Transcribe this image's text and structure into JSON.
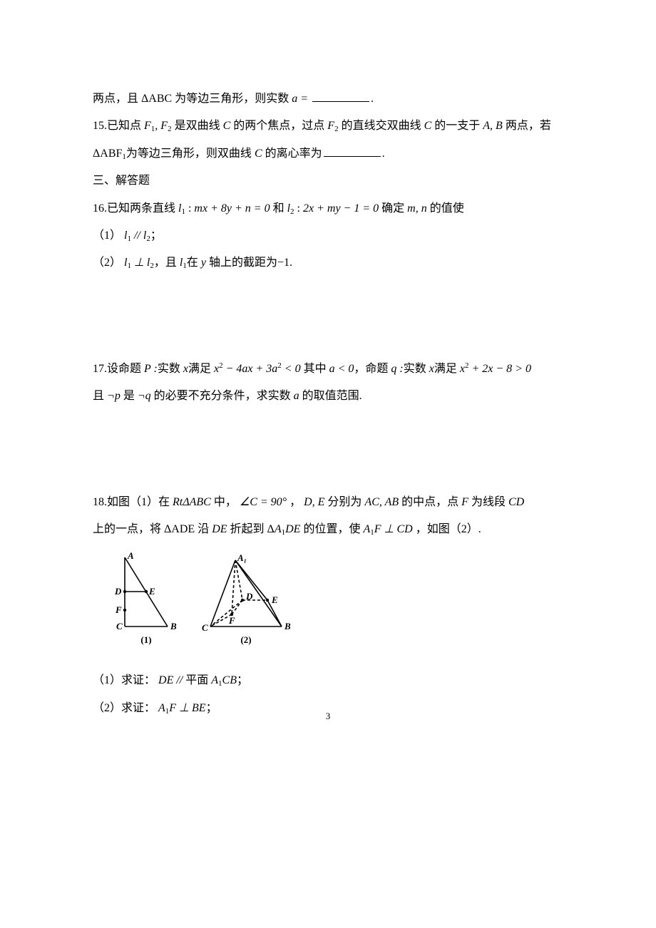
{
  "q14_tail": {
    "pre": "两点，且",
    "tri": "ΔABC",
    "mid": "为等边三角形，则实数",
    "var": "a =",
    "post": "."
  },
  "q15": {
    "num": "15.",
    "pre": "已知点",
    "foci": "F",
    "s1": "1",
    "comma": ", ",
    "s2": "2",
    "mid1": "是双曲线",
    "C": "C",
    "mid2": "的两个焦点，过点",
    "mid3": "的直线交双曲线",
    "mid4": "的一支于",
    "AB": "A, B",
    "mid5": "两点，若",
    "line2_pre": "ΔABF",
    "line2_mid": "为等边三角形，则双曲线",
    "line2_post": "的离心率为",
    "post": "."
  },
  "sec3": "三、解答题",
  "q16": {
    "num": "16.",
    "pre": "已知两条直线",
    "l1": "l",
    "colon": " : ",
    "eq1": "mx + 8y + n = 0",
    "and": "和",
    "eq2": "2x + my − 1 = 0",
    "det": "确定",
    "mn": "m, n",
    "post": "的值使",
    "p1_num": "（1）",
    "p1": "l₁ // l₂",
    "semi": "；",
    "p2_num": "（2）",
    "p2a": "l₁ ⊥ l₂",
    "p2mid": "，且",
    "p2b": "l₁",
    "p2c": "在",
    "p2y": "y",
    "p2post": "轴上的截距为−1."
  },
  "q17": {
    "num": "17.",
    "pre": "设命题",
    "P": "P :",
    "mid1": "实数",
    "x": "x",
    "mid2": "满足",
    "eq1_a": "x",
    "eq1_b": " − 4ax + 3a",
    "eq1_c": " < 0",
    "where": "其中",
    "cond": "a < 0",
    "comma2": "，命题",
    "q": "q :",
    "eq2": "x² + 2x − 8 > 0",
    "line2_pre": "且",
    "np": "¬p",
    "line2_mid1": "是",
    "nq": "¬q",
    "line2_mid2": "的必要不充分条件，求实数",
    "a": "a",
    "line2_post": "的取值范围."
  },
  "q18": {
    "num": "18.",
    "pre": "如图（1）在",
    "rt": "RtΔABC",
    "mid1": "中，",
    "angle": "∠C = 90°",
    "mid2": "，",
    "DE": "D, E",
    "mid3": "分别为",
    "ACAB": "AC, AB",
    "mid4": "的中点，点",
    "F": "F",
    "mid5": "为线段",
    "CD": "CD",
    "line2_pre": "上的一点，将",
    "ADE": "ΔADE",
    "line2_mid1": "沿",
    "DEt": "DE",
    "line2_mid2": "折起到",
    "A1DE": "ΔA₁DE",
    "line2_mid3": "的位置，使",
    "perp": "A₁F ⊥ CD",
    "line2_post": "，如图（2）.",
    "p1_num": "（1）求证：",
    "p1_eq": "DE // ",
    "p1_plane": "平面",
    "p1_acb": "A₁CB",
    "semi": "；",
    "p2_num": "（2）求证：",
    "p2_eq": "A₁F ⊥ BE"
  },
  "figure": {
    "labels": {
      "A": "A",
      "B": "B",
      "C": "C",
      "D": "D",
      "E": "E",
      "F": "F",
      "A1": "A₁",
      "fig1": "(1)",
      "fig2": "(2)"
    },
    "stroke": "#000000",
    "stroke_width": 1.6,
    "font_size": 14,
    "label_font": "bold 13px 'Times New Roman',serif"
  },
  "pagenum": "3"
}
